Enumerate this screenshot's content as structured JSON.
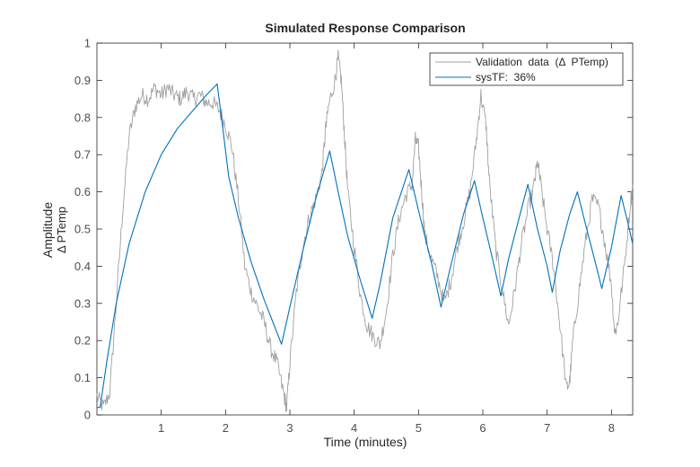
{
  "chart_data": {
    "type": "line",
    "title": "Simulated Response Comparison",
    "xlabel": "Time (minutes)",
    "ylabel_line1": "Amplitude",
    "ylabel_line2": "Δ  PTemp",
    "xlim": [
      0,
      8.33
    ],
    "ylim": [
      0,
      1
    ],
    "xticks": [
      "1",
      "2",
      "3",
      "4",
      "5",
      "6",
      "7",
      "8"
    ],
    "yticks": [
      "0",
      "0.1",
      "0.2",
      "0.3",
      "0.4",
      "0.5",
      "0.6",
      "0.7",
      "0.8",
      "0.9",
      "1"
    ],
    "grid": false,
    "legend_position": "top-right",
    "series": [
      {
        "name": "Validation  data  (Δ  PTemp)",
        "color": "#a0a0a0",
        "noisy": true,
        "points": [
          [
            0.0,
            0.05
          ],
          [
            0.1,
            0.02
          ],
          [
            0.2,
            0.06
          ],
          [
            0.3,
            0.3
          ],
          [
            0.4,
            0.55
          ],
          [
            0.5,
            0.75
          ],
          [
            0.6,
            0.83
          ],
          [
            0.7,
            0.86
          ],
          [
            0.8,
            0.85
          ],
          [
            0.9,
            0.88
          ],
          [
            1.0,
            0.86
          ],
          [
            1.1,
            0.88
          ],
          [
            1.2,
            0.86
          ],
          [
            1.3,
            0.85
          ],
          [
            1.4,
            0.87
          ],
          [
            1.5,
            0.85
          ],
          [
            1.6,
            0.86
          ],
          [
            1.7,
            0.84
          ],
          [
            1.8,
            0.84
          ],
          [
            1.9,
            0.82
          ],
          [
            2.0,
            0.78
          ],
          [
            2.1,
            0.72
          ],
          [
            2.2,
            0.58
          ],
          [
            2.3,
            0.4
          ],
          [
            2.4,
            0.33
          ],
          [
            2.5,
            0.29
          ],
          [
            2.6,
            0.25
          ],
          [
            2.7,
            0.18
          ],
          [
            2.8,
            0.14
          ],
          [
            2.9,
            0.06
          ],
          [
            2.95,
            0.02
          ],
          [
            3.0,
            0.14
          ],
          [
            3.1,
            0.33
          ],
          [
            3.2,
            0.45
          ],
          [
            3.3,
            0.53
          ],
          [
            3.4,
            0.58
          ],
          [
            3.5,
            0.65
          ],
          [
            3.55,
            0.76
          ],
          [
            3.6,
            0.83
          ],
          [
            3.7,
            0.9
          ],
          [
            3.75,
            0.96
          ],
          [
            3.8,
            0.9
          ],
          [
            3.85,
            0.75
          ],
          [
            3.9,
            0.6
          ],
          [
            4.0,
            0.45
          ],
          [
            4.1,
            0.32
          ],
          [
            4.2,
            0.24
          ],
          [
            4.3,
            0.21
          ],
          [
            4.4,
            0.19
          ],
          [
            4.5,
            0.28
          ],
          [
            4.6,
            0.43
          ],
          [
            4.7,
            0.53
          ],
          [
            4.8,
            0.59
          ],
          [
            4.9,
            0.62
          ],
          [
            4.95,
            0.74
          ],
          [
            5.0,
            0.72
          ],
          [
            5.05,
            0.6
          ],
          [
            5.1,
            0.48
          ],
          [
            5.2,
            0.42
          ],
          [
            5.3,
            0.37
          ],
          [
            5.4,
            0.3
          ],
          [
            5.5,
            0.36
          ],
          [
            5.6,
            0.45
          ],
          [
            5.7,
            0.52
          ],
          [
            5.8,
            0.6
          ],
          [
            5.9,
            0.74
          ],
          [
            5.97,
            0.86
          ],
          [
            6.05,
            0.78
          ],
          [
            6.1,
            0.63
          ],
          [
            6.2,
            0.45
          ],
          [
            6.3,
            0.34
          ],
          [
            6.4,
            0.24
          ],
          [
            6.5,
            0.34
          ],
          [
            6.6,
            0.46
          ],
          [
            6.7,
            0.55
          ],
          [
            6.8,
            0.62
          ],
          [
            6.85,
            0.68
          ],
          [
            6.9,
            0.62
          ],
          [
            7.0,
            0.5
          ],
          [
            7.1,
            0.4
          ],
          [
            7.2,
            0.24
          ],
          [
            7.3,
            0.07
          ],
          [
            7.35,
            0.09
          ],
          [
            7.4,
            0.2
          ],
          [
            7.5,
            0.34
          ],
          [
            7.6,
            0.47
          ],
          [
            7.7,
            0.58
          ],
          [
            7.8,
            0.56
          ],
          [
            7.9,
            0.46
          ],
          [
            8.0,
            0.35
          ],
          [
            8.05,
            0.22
          ],
          [
            8.1,
            0.25
          ],
          [
            8.2,
            0.4
          ],
          [
            8.3,
            0.58
          ],
          [
            8.33,
            0.61
          ]
        ]
      },
      {
        "name": "sysTF:  36%",
        "color": "#0072bd",
        "noisy": false,
        "points": [
          [
            0.0,
            0.02
          ],
          [
            0.05,
            0.02
          ],
          [
            0.15,
            0.14
          ],
          [
            0.3,
            0.3
          ],
          [
            0.5,
            0.46
          ],
          [
            0.75,
            0.6
          ],
          [
            1.0,
            0.7
          ],
          [
            1.25,
            0.77
          ],
          [
            1.5,
            0.82
          ],
          [
            1.7,
            0.86
          ],
          [
            1.87,
            0.89
          ],
          [
            1.95,
            0.78
          ],
          [
            2.05,
            0.64
          ],
          [
            2.2,
            0.53
          ],
          [
            2.4,
            0.41
          ],
          [
            2.6,
            0.31
          ],
          [
            2.87,
            0.19
          ],
          [
            3.0,
            0.29
          ],
          [
            3.2,
            0.44
          ],
          [
            3.4,
            0.58
          ],
          [
            3.62,
            0.71
          ],
          [
            3.75,
            0.6
          ],
          [
            3.9,
            0.48
          ],
          [
            4.1,
            0.36
          ],
          [
            4.28,
            0.26
          ],
          [
            4.4,
            0.35
          ],
          [
            4.6,
            0.53
          ],
          [
            4.85,
            0.66
          ],
          [
            5.0,
            0.55
          ],
          [
            5.2,
            0.41
          ],
          [
            5.35,
            0.29
          ],
          [
            5.5,
            0.4
          ],
          [
            5.7,
            0.54
          ],
          [
            5.87,
            0.63
          ],
          [
            6.0,
            0.53
          ],
          [
            6.15,
            0.42
          ],
          [
            6.28,
            0.32
          ],
          [
            6.4,
            0.42
          ],
          [
            6.55,
            0.52
          ],
          [
            6.7,
            0.62
          ],
          [
            6.85,
            0.5
          ],
          [
            7.0,
            0.4
          ],
          [
            7.08,
            0.33
          ],
          [
            7.2,
            0.44
          ],
          [
            7.35,
            0.54
          ],
          [
            7.47,
            0.6
          ],
          [
            7.6,
            0.51
          ],
          [
            7.75,
            0.41
          ],
          [
            7.85,
            0.34
          ],
          [
            8.0,
            0.45
          ],
          [
            8.15,
            0.59
          ],
          [
            8.25,
            0.52
          ],
          [
            8.33,
            0.46
          ]
        ]
      }
    ]
  }
}
